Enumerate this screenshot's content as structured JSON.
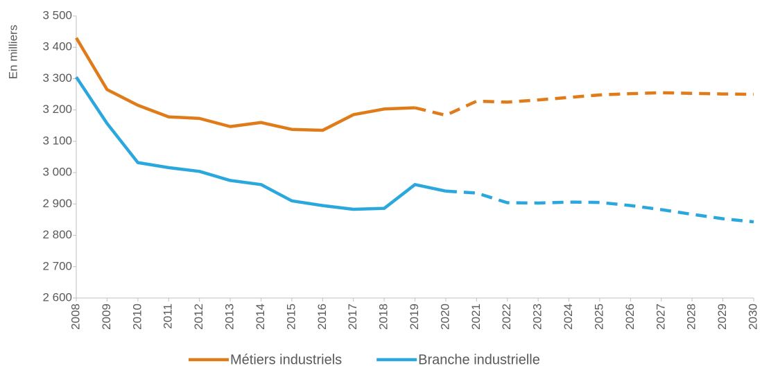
{
  "chart_data": {
    "type": "line",
    "y_label": "En milliers",
    "categories": [
      "2008",
      "2009",
      "2010",
      "2011",
      "2012",
      "2013",
      "2014",
      "2015",
      "2016",
      "2017",
      "2018",
      "2019",
      "2020",
      "2021",
      "2022",
      "2023",
      "2024",
      "2025",
      "2026",
      "2027",
      "2028",
      "2029",
      "2030"
    ],
    "series": [
      {
        "name": "Métiers industriels",
        "color": "#e07b1a",
        "dashed_from": "2019",
        "values": [
          3430,
          3265,
          3215,
          3178,
          3173,
          3147,
          3160,
          3138,
          3135,
          3185,
          3203,
          3207,
          3183,
          3228,
          3225,
          3232,
          3240,
          3248,
          3252,
          3255,
          3253,
          3251,
          3250
        ]
      },
      {
        "name": "Branche industrielle",
        "color": "#2aa7dc",
        "dashed_from": "2020",
        "values": [
          3305,
          3157,
          3032,
          3016,
          3004,
          2975,
          2962,
          2910,
          2895,
          2883,
          2886,
          2962,
          2941,
          2935,
          2904,
          2903,
          2906,
          2905,
          2895,
          2882,
          2867,
          2853,
          2843
        ]
      }
    ],
    "ylim": [
      2600,
      3500
    ],
    "yticks": [
      {
        "value": 2600,
        "label": "2 600"
      },
      {
        "value": 2700,
        "label": "2 700"
      },
      {
        "value": 2800,
        "label": "2 800"
      },
      {
        "value": 2900,
        "label": "2 900"
      },
      {
        "value": 3000,
        "label": "3 000"
      },
      {
        "value": 3100,
        "label": "3 100"
      },
      {
        "value": 3200,
        "label": "3 200"
      },
      {
        "value": 3300,
        "label": "3 300"
      },
      {
        "value": 3400,
        "label": "3 400"
      },
      {
        "value": 3500,
        "label": "3 500"
      }
    ],
    "grid": false,
    "legend": "bottom"
  }
}
